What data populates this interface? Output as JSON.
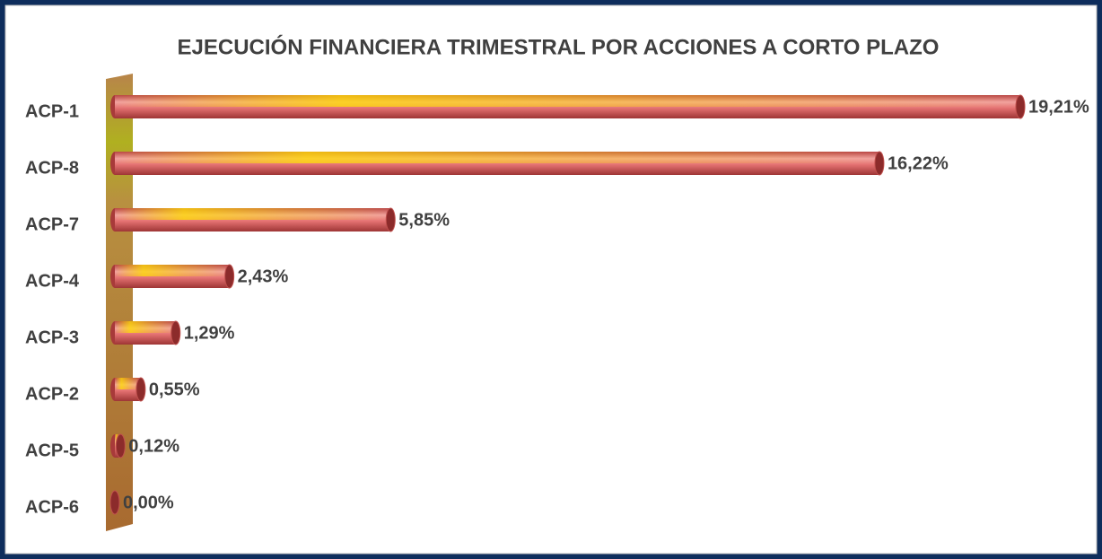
{
  "chart_data": {
    "type": "bar",
    "orientation": "horizontal",
    "title": "EJECUCIÓN FINANCIERA TRIMESTRAL POR ACCIONES A CORTO PLAZO",
    "categories": [
      "ACP-1",
      "ACP-8",
      "ACP-7",
      "ACP-4",
      "ACP-3",
      "ACP-2",
      "ACP-5",
      "ACP-6"
    ],
    "values": [
      19.21,
      16.22,
      5.85,
      2.43,
      1.29,
      0.55,
      0.12,
      0.0
    ],
    "value_labels": [
      "19,21%",
      "16,22%",
      "5,85%",
      "2,43%",
      "1,29%",
      "0,55%",
      "0,12%",
      "0,00%"
    ],
    "color": "#c0504d"
  }
}
